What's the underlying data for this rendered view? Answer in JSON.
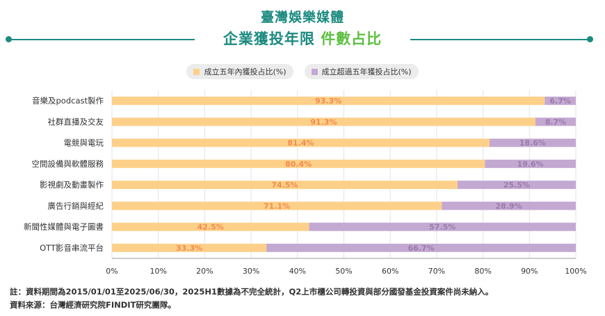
{
  "title": {
    "main": "臺灣娛樂媒體",
    "sub_prefix": "企業獲投年限 ",
    "sub_highlight": "件數占比"
  },
  "colors": {
    "teal": "#1b8a7f",
    "highlight": "#5bbf3f",
    "series1": "#fdd08a",
    "series2": "#c3a9d1",
    "series1_label": "#f28b4b",
    "series2_label": "#9b7aac"
  },
  "footer": {
    "note": "註：資料期間為2015/01/01至2025/06/30，2025H1數據為不完全統計，Q2上市櫃公司轉投資與部分國發基金投資案件尚未納入。",
    "source": "資料來源：台灣經濟研究院FINDIT研究團隊。"
  },
  "chart_data": {
    "type": "bar",
    "orientation": "horizontal",
    "stacked": true,
    "categories": [
      "音樂及podcast製作",
      "社群直播及交友",
      "電競與電玩",
      "空間設備與軟體服務",
      "影視劇及動畫製作",
      "廣告行銷與經紀",
      "新聞性媒體與電子圖書",
      "OTT影音串流平台"
    ],
    "series": [
      {
        "name": "成立五年內獲投占比(%)",
        "values": [
          93.3,
          91.3,
          81.4,
          80.4,
          74.5,
          71.1,
          42.5,
          33.3
        ],
        "labels": [
          "93.3%",
          "91.3%",
          "81.4%",
          "80.4%",
          "74.5%",
          "71.1%",
          "42.5%",
          "33.3%"
        ]
      },
      {
        "name": "成立超過五年獲投占比(%)",
        "values": [
          6.7,
          8.7,
          18.6,
          19.6,
          25.5,
          28.9,
          57.5,
          66.7
        ],
        "labels": [
          "6.7%",
          "8.7%",
          "18.6%",
          "19.6%",
          "25.5%",
          "28.9%",
          "57.5%",
          "66.7%"
        ]
      }
    ],
    "xlim": [
      0,
      100
    ],
    "xticks": [
      0,
      10,
      20,
      30,
      40,
      50,
      60,
      70,
      80,
      90,
      100
    ],
    "xtick_labels": [
      "0%",
      "10%",
      "20%",
      "30%",
      "40%",
      "50%",
      "60%",
      "70%",
      "80%",
      "90%",
      "100%"
    ],
    "grid": true,
    "legend_position": "top"
  }
}
